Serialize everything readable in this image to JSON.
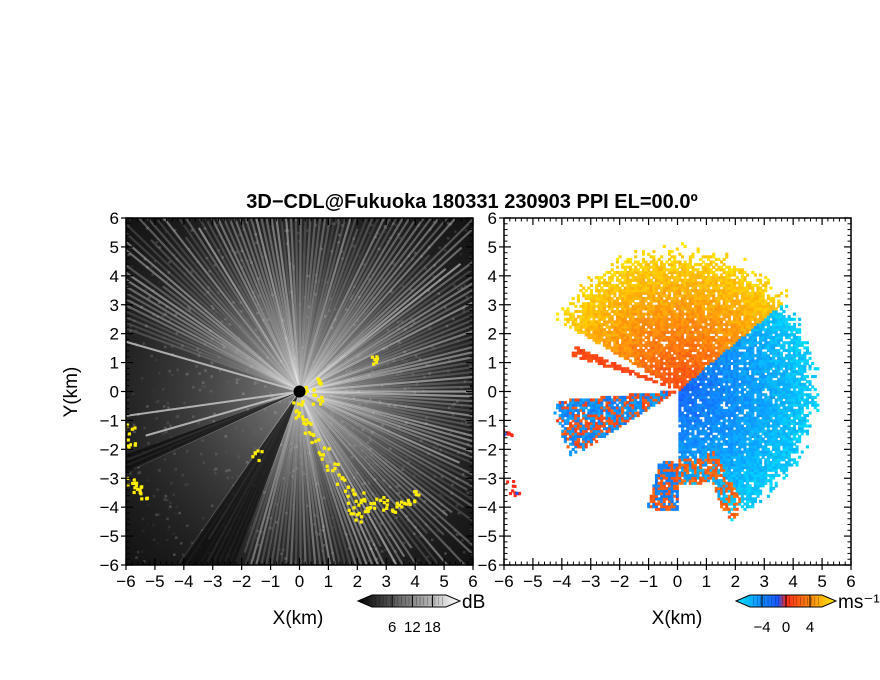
{
  "chart_data": [
    {
      "type": "heatmap",
      "panel": "reflectivity",
      "title": "3D−CDL@Fukuoka 180331 230903 PPI EL=00.0º",
      "xlabel": "X(km)",
      "ylabel": "Y(km)",
      "xlim": [
        -6,
        6
      ],
      "ylim": [
        -6,
        6
      ],
      "xticks": [
        "−6",
        "−5",
        "−4",
        "−3",
        "−2",
        "−1",
        "0",
        "1",
        "2",
        "3",
        "4",
        "5",
        "6"
      ],
      "yticks": [
        "−6",
        "−5",
        "−4",
        "−3",
        "−2",
        "−1",
        "0",
        "1",
        "2",
        "3",
        "4",
        "5",
        "6"
      ],
      "colorbar": {
        "unit": "dB",
        "ticks": [
          "6",
          "12",
          "18"
        ],
        "range": [
          0,
          22
        ],
        "colors": [
          "#000000",
          "#ffffff"
        ]
      },
      "background_color": "#141414",
      "clutter_color": "#ffee00",
      "radar_origin": [
        0,
        0
      ]
    },
    {
      "type": "heatmap",
      "panel": "radial velocity",
      "xlabel": "X(km)",
      "xlim": [
        -6,
        6
      ],
      "ylim": [
        -6,
        6
      ],
      "xticks": [
        "−6",
        "−5",
        "−4",
        "−3",
        "−2",
        "−1",
        "0",
        "1",
        "2",
        "3",
        "4",
        "5",
        "6"
      ],
      "yticks": [
        "−6",
        "−5",
        "−4",
        "−3",
        "−2",
        "−1",
        "0",
        "1",
        "2",
        "3",
        "4",
        "5",
        "6"
      ],
      "colorbar": {
        "unit": "ms⁻¹",
        "ticks": [
          "−4",
          "0",
          "4"
        ],
        "range": [
          -6,
          6
        ],
        "colors": [
          "#00e5ff",
          "#1a55ff",
          "#ff2a1a",
          "#ffee00"
        ]
      },
      "background_color": "#ffffff",
      "radar_origin": [
        0,
        0
      ]
    }
  ]
}
